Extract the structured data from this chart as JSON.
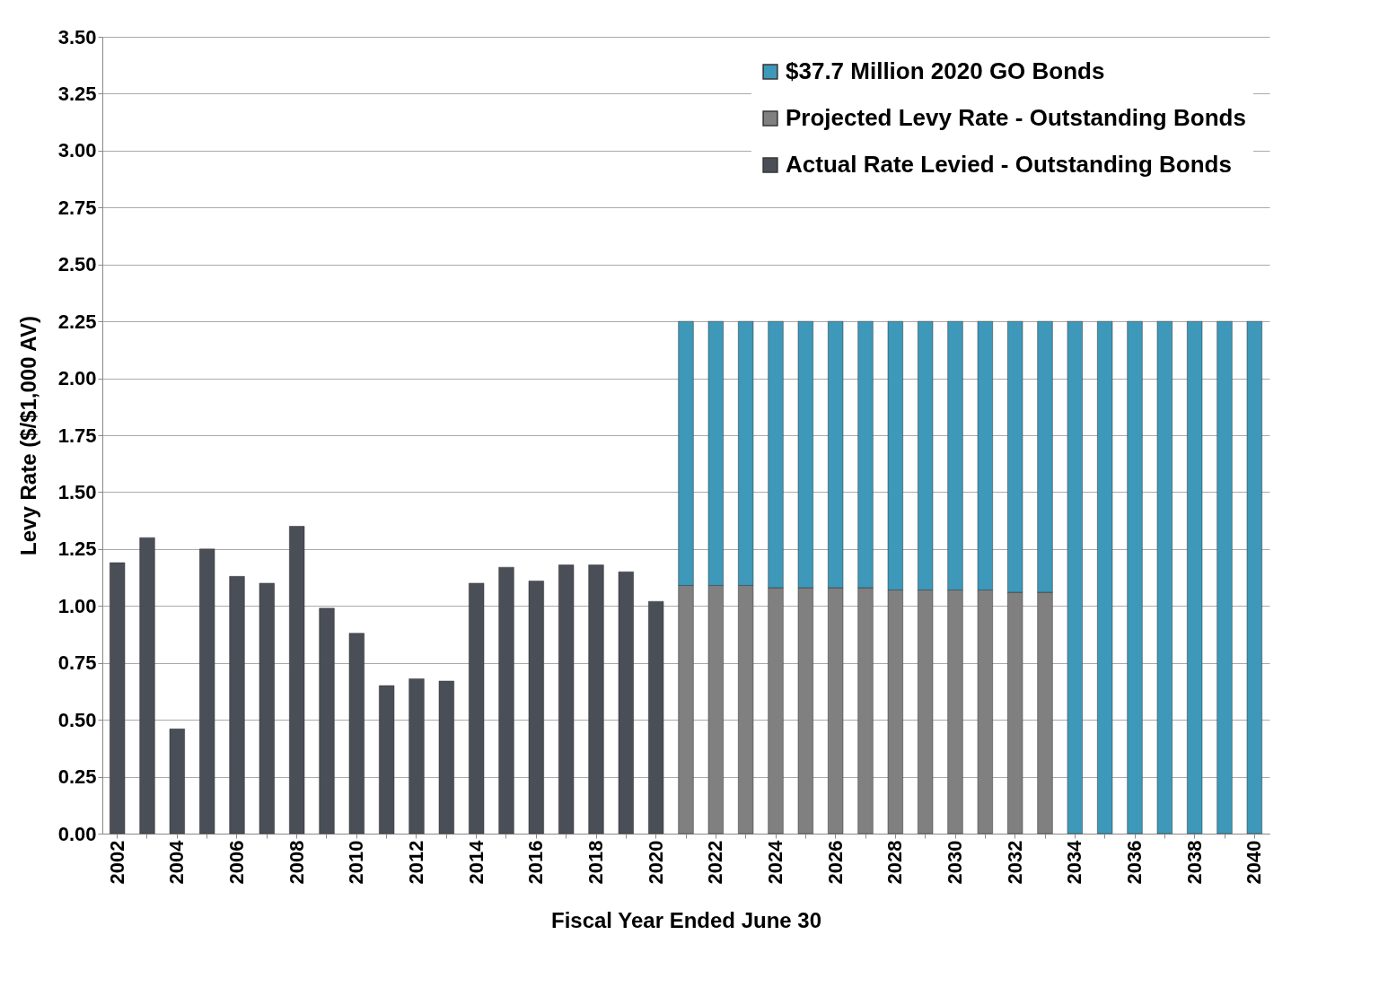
{
  "chart_data": {
    "type": "bar",
    "stacked": true,
    "xlabel": "Fiscal Year Ended June 30",
    "ylabel": "Levy Rate ($/$1,000 AV)",
    "categories": [
      "2002",
      null,
      "2004",
      null,
      "2006",
      null,
      "2008",
      null,
      "2010",
      null,
      "2012",
      null,
      "2014",
      null,
      "2016",
      null,
      "2018",
      null,
      "2020",
      null,
      "2022",
      null,
      "2024",
      null,
      "2026",
      null,
      "2028",
      null,
      "2030",
      null,
      "2032",
      null,
      "2034",
      null,
      "2036",
      null,
      "2038",
      null,
      "2040"
    ],
    "series": [
      {
        "name": "Actual Rate Levied - Outstanding Bonds",
        "color": "#4a4e57",
        "values": [
          1.19,
          1.3,
          0.46,
          1.25,
          1.13,
          1.1,
          1.35,
          0.99,
          0.88,
          0.65,
          0.68,
          0.67,
          1.1,
          1.17,
          1.11,
          1.18,
          1.18,
          1.15,
          1.02,
          null,
          null,
          null,
          null,
          null,
          null,
          null,
          null,
          null,
          null,
          null,
          null,
          null,
          null,
          null,
          null,
          null,
          null,
          null,
          null
        ]
      },
      {
        "name": "Projected Levy Rate - Outstanding Bonds",
        "color": "#808080",
        "values": [
          null,
          null,
          null,
          null,
          null,
          null,
          null,
          null,
          null,
          null,
          null,
          null,
          null,
          null,
          null,
          null,
          null,
          null,
          null,
          1.09,
          1.09,
          1.09,
          1.08,
          1.08,
          1.08,
          1.08,
          1.07,
          1.07,
          1.07,
          1.07,
          1.06,
          1.06,
          null,
          null,
          null,
          null,
          null,
          null,
          null
        ]
      },
      {
        "name": "$37.7 Million 2020 GO Bonds",
        "color": "#3d98b9",
        "values": [
          null,
          null,
          null,
          null,
          null,
          null,
          null,
          null,
          null,
          null,
          null,
          null,
          null,
          null,
          null,
          null,
          null,
          null,
          null,
          1.16,
          1.16,
          1.16,
          1.17,
          1.17,
          1.17,
          1.17,
          1.18,
          1.18,
          1.18,
          1.18,
          1.19,
          1.19,
          2.25,
          2.25,
          2.25,
          2.25,
          2.25,
          2.25,
          2.25
        ]
      }
    ],
    "ylim": [
      0,
      3.5
    ],
    "yticks": [
      {
        "value": 0,
        "label": "0.00"
      },
      {
        "value": 0.25,
        "label": "0.25"
      },
      {
        "value": 0.5,
        "label": "0.50"
      },
      {
        "value": 0.75,
        "label": "0.75"
      },
      {
        "value": 1,
        "label": "1.00"
      },
      {
        "value": 1.25,
        "label": "1.25"
      },
      {
        "value": 1.5,
        "label": "1.50"
      },
      {
        "value": 1.75,
        "label": "1.75"
      },
      {
        "value": 2,
        "label": "2.00"
      },
      {
        "value": 2.25,
        "label": "2.25"
      },
      {
        "value": 2.5,
        "label": "2.50"
      },
      {
        "value": 2.75,
        "label": "2.75"
      },
      {
        "value": 3,
        "label": "3.00"
      },
      {
        "value": 3.25,
        "label": "3.25"
      },
      {
        "value": 3.5,
        "label": "3.50"
      }
    ],
    "grid": "y",
    "legend": "top right"
  }
}
